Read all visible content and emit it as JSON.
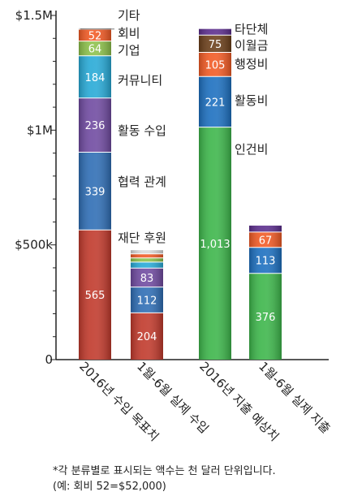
{
  "chart_data": {
    "type": "bar",
    "stacked": true,
    "y_unit": "thousand USD",
    "ylim": [
      0,
      1500
    ],
    "y_ticks": [
      {
        "value": 0,
        "label": "0"
      },
      {
        "value": 500,
        "label": "$500k"
      },
      {
        "value": 1000,
        "label": "$1M"
      },
      {
        "value": 1500,
        "label": "$1.5M"
      }
    ],
    "y_minor_step": 100,
    "categories": [
      "2016년 수입 목표치",
      "1월-6월 실제 수입",
      "2016년 지출 예상치",
      "1월-6월 실제 지출"
    ],
    "bars": [
      {
        "category": "2016년 수입 목표치",
        "segments": [
          {
            "name": "재단 후원",
            "value": 565,
            "label": "565",
            "color": "#c0392b"
          },
          {
            "name": "협력 관계",
            "value": 339,
            "label": "339",
            "color": "#2e6db4"
          },
          {
            "name": "활동 수입",
            "value": 236,
            "label": "236",
            "color": "#6f4aa0"
          },
          {
            "name": "커뮤니티",
            "value": 184,
            "label": "184",
            "color": "#27a9d6"
          },
          {
            "name": "기업",
            "value": 64,
            "label": "64",
            "color": "#8cc04a"
          },
          {
            "name": "회비",
            "value": 52,
            "label": "52",
            "color": "#f15a24"
          },
          {
            "name": "기타",
            "value": 4,
            "label": "",
            "color": "#d9d9d9"
          }
        ]
      },
      {
        "category": "1월-6월 실제 수입",
        "segments": [
          {
            "name": "재단 후원",
            "value": 204,
            "label": "204",
            "color": "#c0392b"
          },
          {
            "name": "협력 관계",
            "value": 112,
            "label": "112",
            "color": "#2e6db4"
          },
          {
            "name": "활동 수입",
            "value": 83,
            "label": "83",
            "color": "#6f4aa0"
          },
          {
            "name": "커뮤니티",
            "value": 26,
            "label": "",
            "color": "#27a9d6"
          },
          {
            "name": "기업",
            "value": 18,
            "label": "",
            "color": "#8cc04a"
          },
          {
            "name": "회비",
            "value": 18,
            "label": "",
            "color": "#f15a24"
          },
          {
            "name": "기타",
            "value": 16,
            "label": "",
            "color": "#d9d9d9"
          }
        ]
      },
      {
        "category": "2016년 지출 예상치",
        "segments": [
          {
            "name": "인건비",
            "value": 1013,
            "label": "1,013",
            "color": "#3cb54a"
          },
          {
            "name": "활동비",
            "value": 221,
            "label": "221",
            "color": "#1c6fbf"
          },
          {
            "name": "행정비",
            "value": 105,
            "label": "105",
            "color": "#f15a24"
          },
          {
            "name": "이월금",
            "value": 75,
            "label": "75",
            "color": "#6b3f1a"
          },
          {
            "name": "타단체",
            "value": 27,
            "label": "",
            "color": "#5b2d8c"
          }
        ]
      },
      {
        "category": "1월-6월 실제 지출",
        "segments": [
          {
            "name": "인건비",
            "value": 376,
            "label": "376",
            "color": "#3cb54a"
          },
          {
            "name": "활동비",
            "value": 113,
            "label": "113",
            "color": "#1c6fbf"
          },
          {
            "name": "행정비",
            "value": 67,
            "label": "67",
            "color": "#f15a24"
          },
          {
            "name": "타단체",
            "value": 28,
            "label": "",
            "color": "#5b2d8c"
          }
        ]
      }
    ],
    "annotations": [
      {
        "bar": 0,
        "segment": 6,
        "text": "기타"
      },
      {
        "bar": 0,
        "segment": 5,
        "text": "회비"
      },
      {
        "bar": 0,
        "segment": 4,
        "text": "기업"
      },
      {
        "bar": 0,
        "segment": 3,
        "text": "커뮤니티"
      },
      {
        "bar": 0,
        "segment": 2,
        "text": "활동 수입"
      },
      {
        "bar": 0,
        "segment": 1,
        "text": "협력 관계"
      },
      {
        "bar": 0,
        "segment": 0,
        "text": "재단 후원"
      },
      {
        "bar": 2,
        "segment": 4,
        "text": "타단체"
      },
      {
        "bar": 2,
        "segment": 3,
        "text": "이월금"
      },
      {
        "bar": 2,
        "segment": 2,
        "text": "행정비"
      },
      {
        "bar": 2,
        "segment": 1,
        "text": "활동비"
      },
      {
        "bar": 2,
        "segment": 0,
        "text": "인건비"
      }
    ]
  },
  "footnote": {
    "line1": "*각 분류별로 표시되는 액수는 천 달러 단위입니다.",
    "line2": "(예: 회비 52=$52,000)"
  }
}
